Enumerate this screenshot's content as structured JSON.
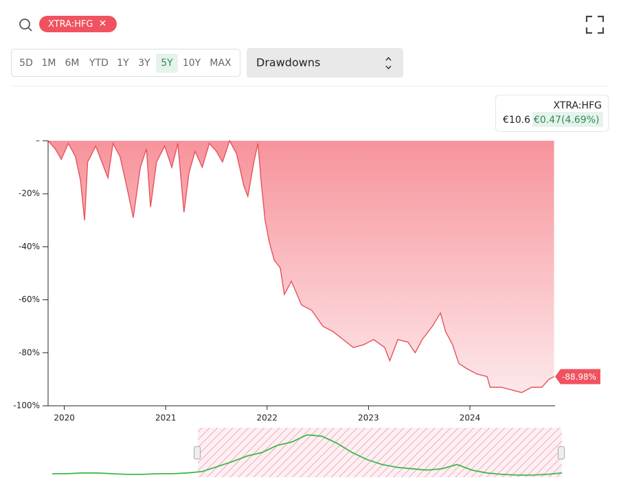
{
  "ui": {
    "ticker": "XTRA:HFG",
    "ranges": [
      "5D",
      "1M",
      "6M",
      "YTD",
      "1Y",
      "3Y",
      "5Y",
      "10Y",
      "MAX"
    ],
    "active_range": "5Y",
    "dropdown": "Drawdowns",
    "tooltip": {
      "title": "XTRA:HFG",
      "price": "€10.6",
      "change": "€0.47(4.69%)"
    }
  },
  "chart_data": [
    {
      "type": "area",
      "color": "#e8505b",
      "x": [
        2019.84,
        2019.91,
        2019.97,
        2020.04,
        2020.11,
        2020.16,
        2020.2,
        2020.23,
        2020.31,
        2020.38,
        2020.43,
        2020.48,
        2020.55,
        2020.62,
        2020.68,
        2020.75,
        2020.81,
        2020.85,
        2020.91,
        2020.99,
        2021.06,
        2021.12,
        2021.18,
        2021.23,
        2021.29,
        2021.36,
        2021.43,
        2021.5,
        2021.56,
        2021.63,
        2021.7,
        2021.77,
        2021.81,
        2021.87,
        2021.91,
        2021.94,
        2021.98,
        2022.02,
        2022.07,
        2022.13,
        2022.17,
        2022.24,
        2022.34,
        2022.44,
        2022.55,
        2022.65,
        2022.75,
        2022.85,
        2022.95,
        2023.05,
        2023.16,
        2023.21,
        2023.29,
        2023.39,
        2023.46,
        2023.53,
        2023.63,
        2023.71,
        2023.76,
        2023.83,
        2023.89,
        2023.97,
        2024.07,
        2024.17,
        2024.2,
        2024.31,
        2024.41,
        2024.51,
        2024.61,
        2024.71,
        2024.78,
        2024.83
      ],
      "values": [
        0,
        -3,
        -7,
        -1,
        -6,
        -15,
        -30,
        -8,
        -2,
        -9,
        -14,
        -1,
        -6,
        -18,
        -29,
        -10,
        -3,
        -25,
        -8,
        -2,
        -10,
        -1,
        -27,
        -12,
        -4,
        -10,
        -1,
        -4,
        -8,
        0,
        -5,
        -17,
        -21,
        -8,
        -1,
        -15,
        -30,
        -38,
        -45,
        -48,
        -58,
        -53,
        -62,
        -64,
        -70,
        -72,
        -75,
        -78,
        -77,
        -75,
        -78,
        -83,
        -75,
        -76,
        -80,
        -75,
        -70,
        -65,
        -72,
        -77,
        -84,
        -86,
        -88,
        -89,
        -93,
        -93,
        -94,
        -95,
        -93,
        -93,
        -90,
        -88.98
      ],
      "xlim": [
        2019.84,
        2024.84
      ],
      "ylim": [
        -100,
        0
      ],
      "xticks": [
        2020,
        2021,
        2022,
        2023,
        2024
      ],
      "yticks": [
        {
          "value": 0,
          "label": "–"
        },
        {
          "value": -20,
          "label": "-20%"
        },
        {
          "value": -40,
          "label": "-40%"
        },
        {
          "value": -60,
          "label": "-60%"
        },
        {
          "value": -80,
          "label": "-80%"
        },
        {
          "value": -100,
          "label": "-100%"
        }
      ],
      "annotations": [
        {
          "value": -88.98,
          "label": "-88.98%"
        }
      ]
    },
    {
      "type": "line",
      "color": "#3db84a",
      "ylim": [
        0,
        70
      ],
      "values": [
        5,
        5,
        6,
        6,
        5,
        4,
        4,
        5,
        5,
        6,
        8,
        15,
        22,
        30,
        35,
        45,
        50,
        60,
        58,
        48,
        35,
        25,
        18,
        14,
        12,
        10,
        12,
        18,
        10,
        6,
        4,
        3,
        3,
        4,
        6
      ]
    }
  ]
}
